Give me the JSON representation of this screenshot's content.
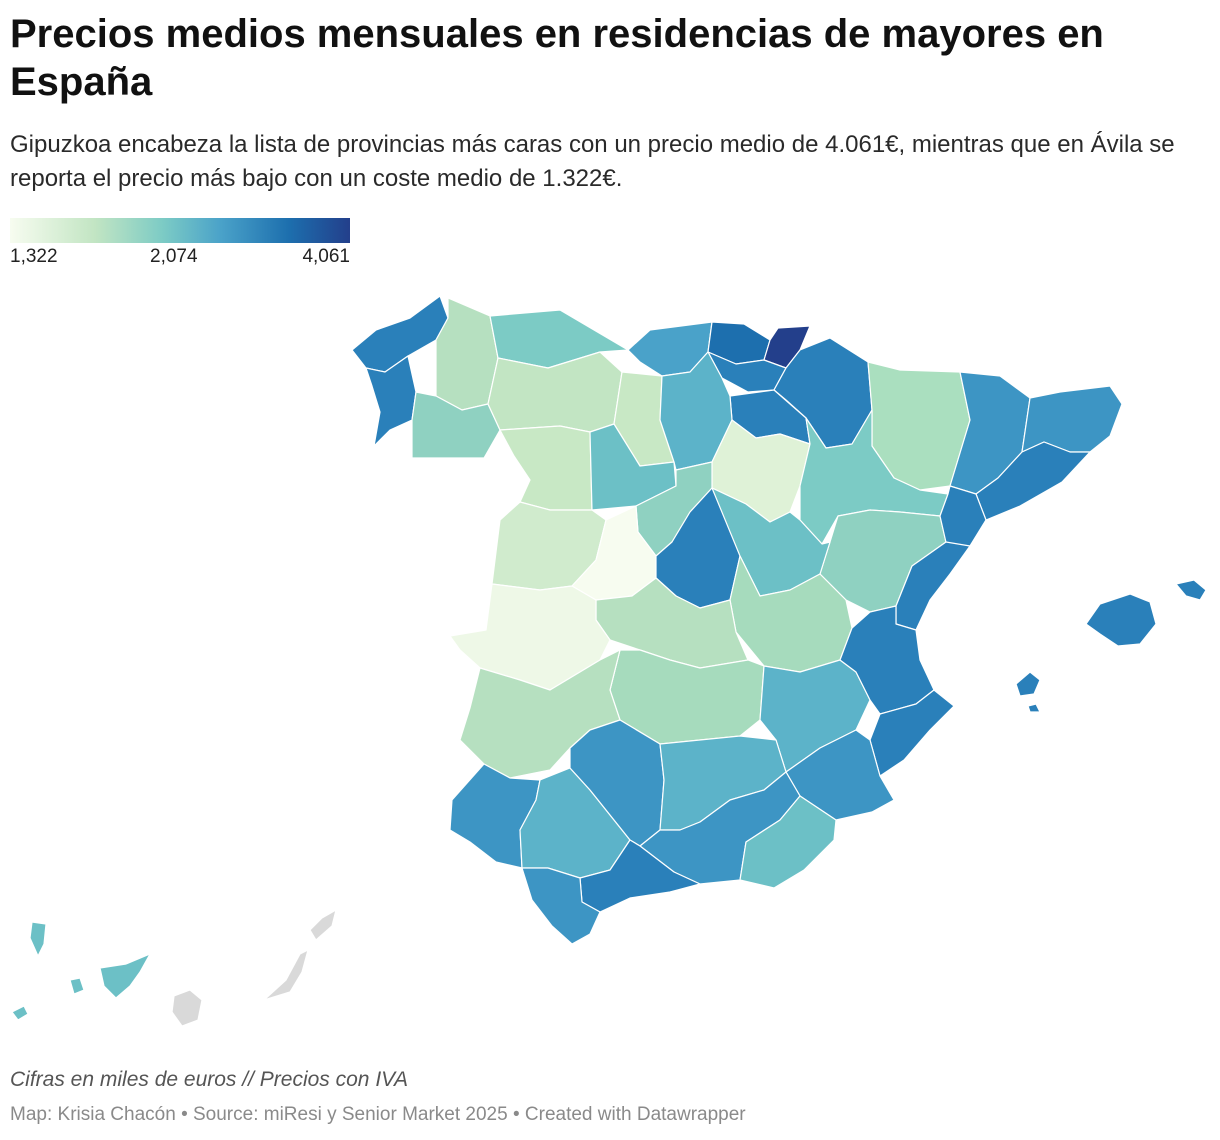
{
  "header": {
    "title": "Precios medios mensuales en residencias de mayores en España",
    "subtitle": "Gipuzkoa encabeza la lista de provincias más caras con un precio medio de 4.061€, mientras que en Ávila se reporta el precio más bajo con un coste medio de 1.322€."
  },
  "legend": {
    "min_label": "1,322",
    "mid_label": "2,074",
    "max_label": "4,061",
    "min_value": 1322,
    "mid_value": 2074,
    "max_value": 4061
  },
  "colors": {
    "no_data": "#d9d9d9",
    "scale": [
      "#f7fcf0",
      "#c2e5c3",
      "#7ccbc5",
      "#4aa2c9",
      "#1d6fae",
      "#233f8b"
    ]
  },
  "footer": {
    "note": "Cifras en miles de euros // Precios con IVA",
    "source": "Map: Krisia Chacón • Source: miResi y Senior Market 2025 • Created with Datawrapper"
  }
}
